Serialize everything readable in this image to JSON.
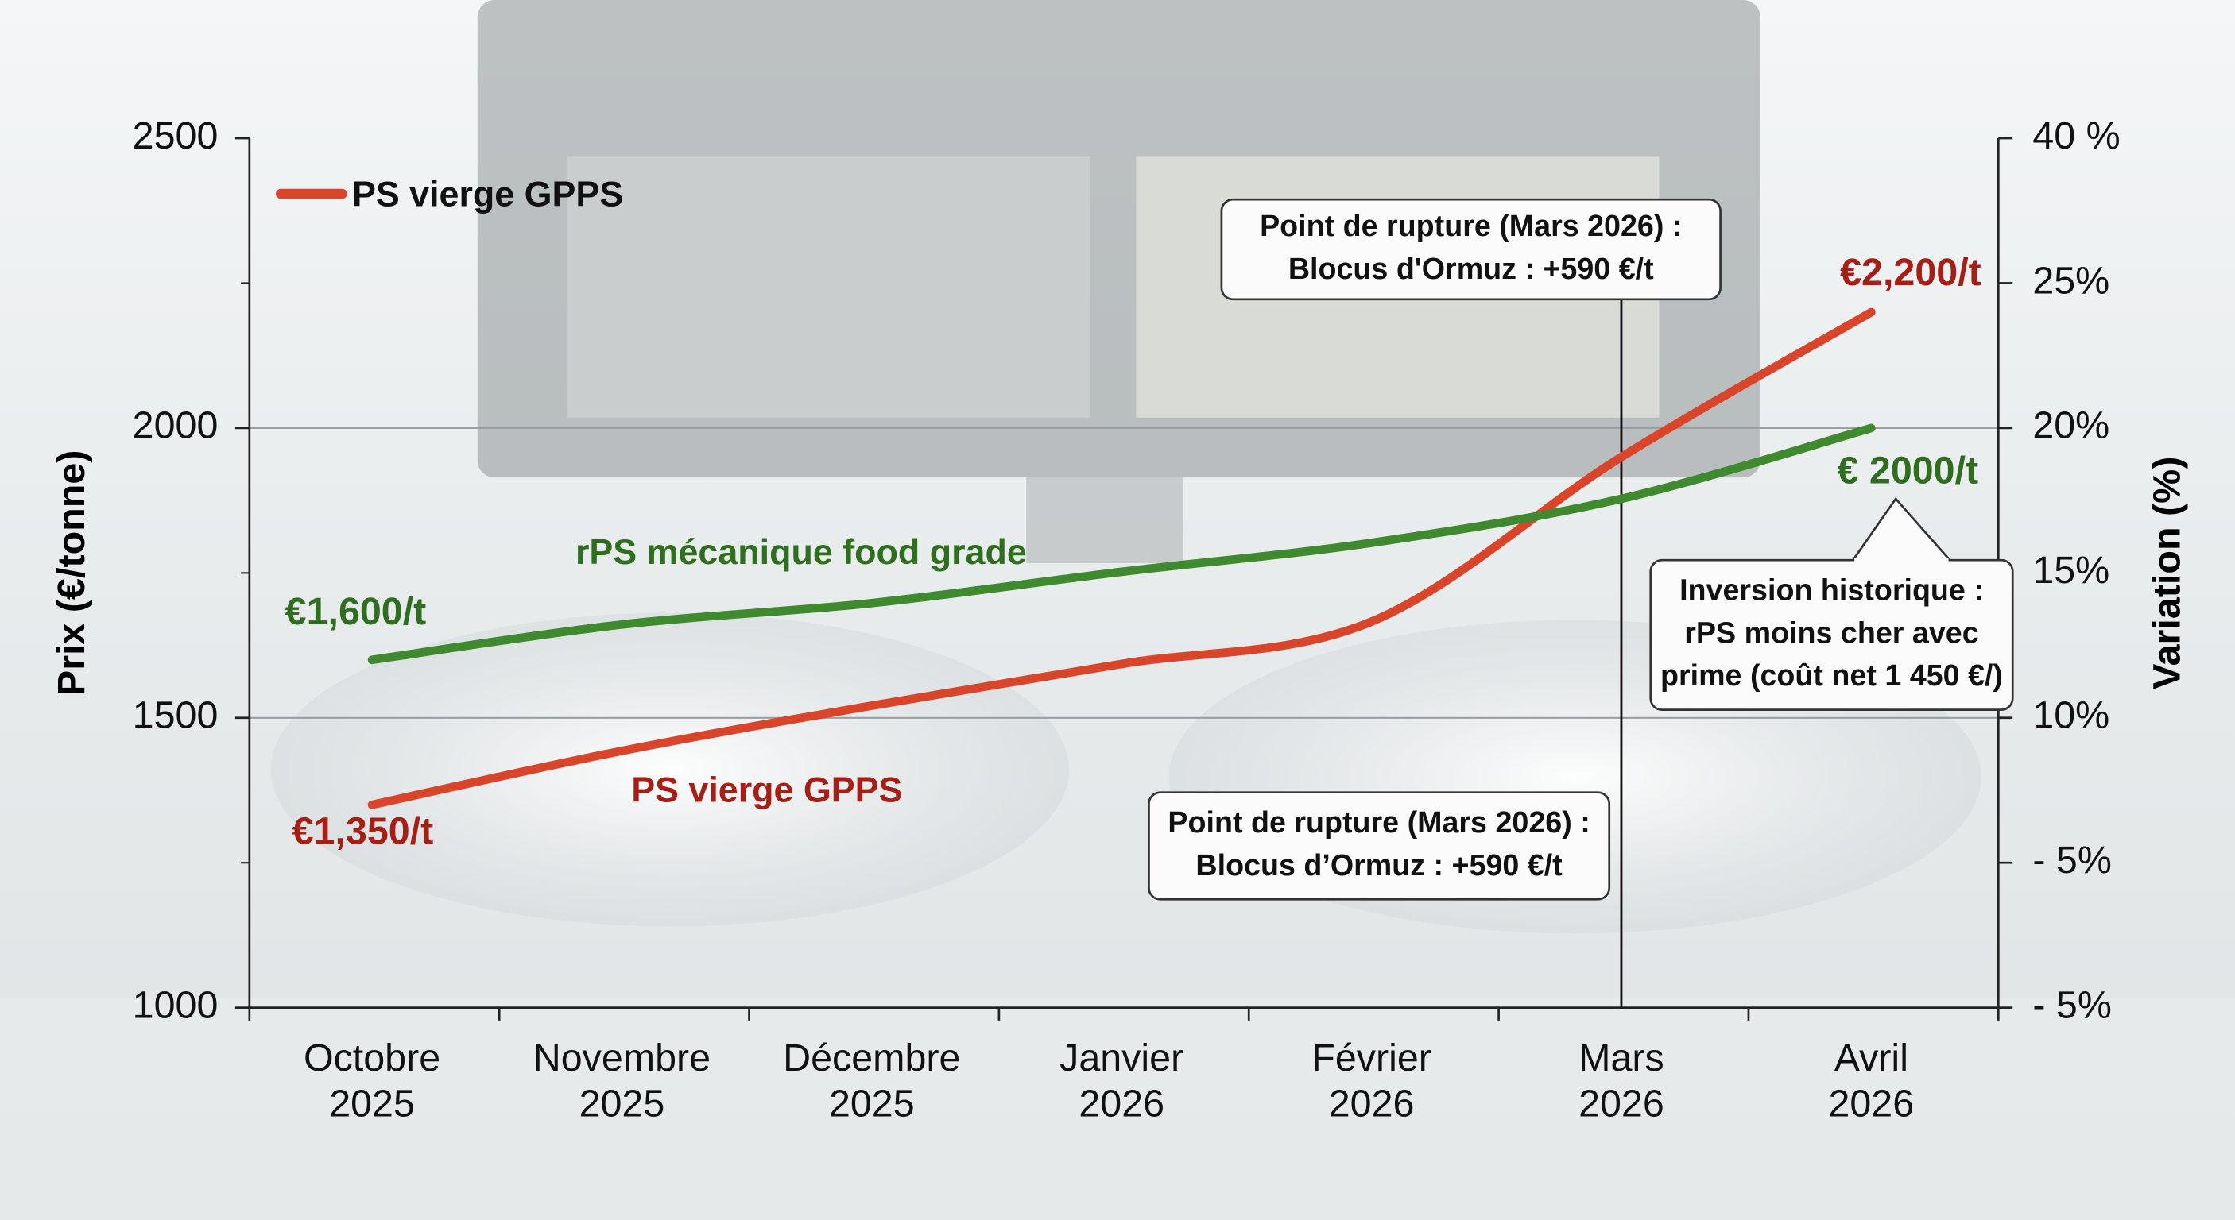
{
  "chart_data": {
    "type": "line",
    "categories": [
      [
        "Octobre",
        "2025"
      ],
      [
        "Novembre",
        "2025"
      ],
      [
        "Décembre",
        "2025"
      ],
      [
        "Janvier",
        "2026"
      ],
      [
        "Février",
        "2026"
      ],
      [
        "Mars",
        "2026"
      ],
      [
        "Avril",
        "2026"
      ]
    ],
    "series": [
      {
        "name": "PS vierge GPPS",
        "color": "#d9452b",
        "values": [
          1350,
          1443,
          1521,
          1593,
          1666,
          1950,
          2200
        ],
        "value_labels": [
          "€1,350/t",
          null,
          null,
          null,
          null,
          null,
          "€2,200/t"
        ],
        "label_color": "#a61f17"
      },
      {
        "name": "rPS mécanique food grade",
        "color": "#3f8a2e",
        "values": [
          1600,
          1661,
          1698,
          1752,
          1802,
          1878,
          2000
        ],
        "value_labels": [
          "€1,600/t",
          null,
          null,
          null,
          null,
          null,
          "€ 2000/t"
        ],
        "label_color": "#2f6e1f"
      }
    ],
    "ylim": [
      1000,
      2500
    ],
    "yticks": [
      1000,
      1500,
      2000,
      2500
    ],
    "y2_tick_labels": [
      "40 %",
      "25%",
      "20%",
      "15%",
      "10%",
      "- 5%",
      "- 5%"
    ],
    "ylabel": "Prix (€/tonne)",
    "y2label": "Variation (%)",
    "grid": true,
    "legend": "upper left",
    "event_category": 5,
    "annotations": [
      {
        "lines": [
          "Point de rupture (Mars 2026) :",
          "Blocus d'Ormuz : +590 €/t"
        ]
      },
      {
        "lines": [
          "Point de rupture (Mars 2026) :",
          "Blocus d’Ormuz : +590 €/t"
        ]
      },
      {
        "lines": [
          "Inversion historique :",
          "rPS moins cher avec",
          "prime (coût net 1 450 €/)"
        ]
      }
    ]
  }
}
